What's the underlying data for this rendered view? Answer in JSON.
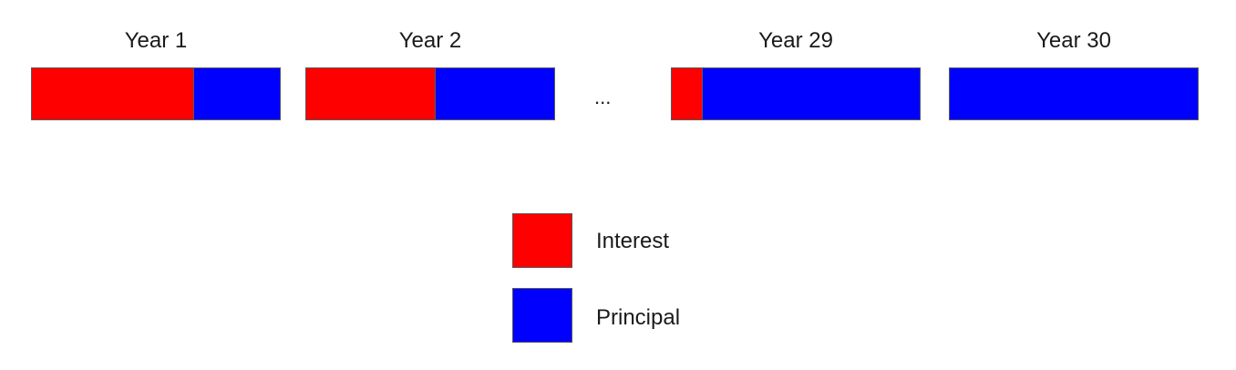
{
  "colors": {
    "interest": "#ff0000",
    "principal": "#0000ff"
  },
  "years": [
    {
      "label": "Year 1",
      "interest_fraction": 0.65,
      "principal_fraction": 0.35
    },
    {
      "label": "Year 2",
      "interest_fraction": 0.52,
      "principal_fraction": 0.48
    },
    {
      "label": "Year 29",
      "interest_fraction": 0.12,
      "principal_fraction": 0.88
    },
    {
      "label": "Year 30",
      "interest_fraction": 0.0,
      "principal_fraction": 1.0
    }
  ],
  "ellipsis": "...",
  "legend": [
    {
      "key": "interest",
      "label": "Interest"
    },
    {
      "key": "principal",
      "label": "Principal"
    }
  ]
}
